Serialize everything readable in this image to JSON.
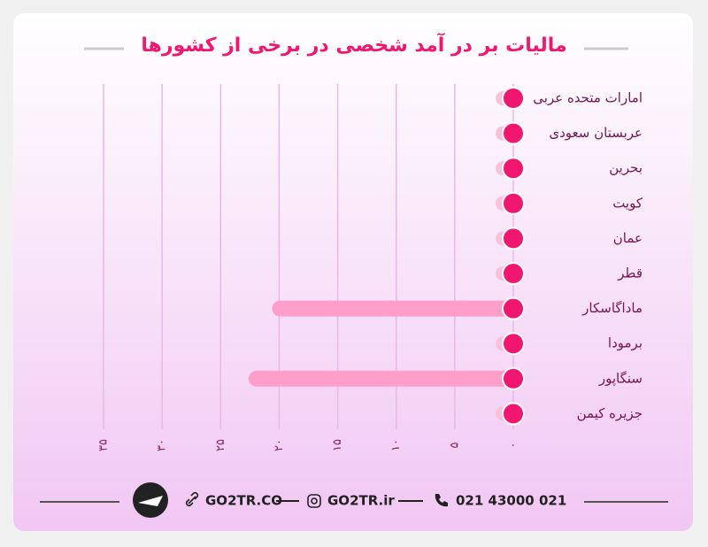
{
  "chart_data": {
    "type": "hbar",
    "title": "مالیات بر در آمد شخصی در برخی از کشورها",
    "categories": [
      "امارات متحده عربی",
      "عربستان سعودی",
      "بحرین",
      "کویت",
      "عمان",
      "قطر",
      "ماداگاسکار",
      "برمودا",
      "سنگاپور",
      "جزیره کیمن"
    ],
    "values": [
      0,
      0,
      0,
      0,
      0,
      0,
      20,
      0,
      22,
      0
    ],
    "color": "#ff9fc9",
    "dot_color": "#f1166f",
    "xlim": [
      0,
      35
    ],
    "xticks": [
      {
        "value": 0,
        "label": "۰"
      },
      {
        "value": 5,
        "label": "۵"
      },
      {
        "value": 10,
        "label": "۱۰"
      },
      {
        "value": 15,
        "label": "۱۵"
      },
      {
        "value": 20,
        "label": "۲۰"
      },
      {
        "value": 25,
        "label": "۲۵"
      },
      {
        "value": 30,
        "label": "۳۰"
      },
      {
        "value": 35,
        "label": "۳۵"
      }
    ],
    "grid": true
  },
  "footer": {
    "site": "GO2TR.CO",
    "instagram": "GO2TR.ir",
    "phone": "021 43000 021"
  }
}
